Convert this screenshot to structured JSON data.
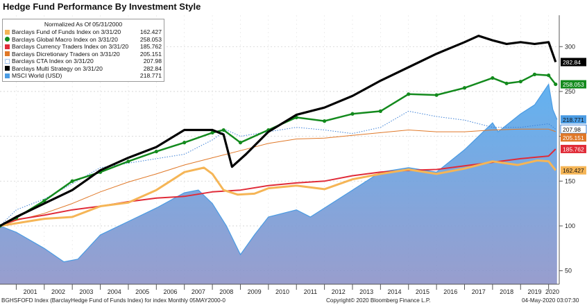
{
  "chart_data": {
    "type": "line",
    "title": "Hedge Fund Performance By Investment Style",
    "normalized_note": "Normalized As Of 05/31/2000",
    "xlabel": "",
    "ylabel": "",
    "x_tick_labels": [
      "2001",
      "2002",
      "2003",
      "2004",
      "2005",
      "2006",
      "2007",
      "2008",
      "2009",
      "2010",
      "2011",
      "2012",
      "2013",
      "2014",
      "2015",
      "2016",
      "2017",
      "2018",
      "2019",
      "2020"
    ],
    "xlim": [
      2000.42,
      2020.38
    ],
    "y_tick_labels": [
      "50",
      "100",
      "150",
      "200",
      "250",
      "300"
    ],
    "y_ticks": [
      50,
      100,
      150,
      200,
      250,
      300
    ],
    "ylim": [
      35,
      335
    ],
    "legend_position": "top-left",
    "series": [
      {
        "name": "Barclays Fund of Funds Index on 3/31/20",
        "value_label": "162.427",
        "color": "#f5b556",
        "style": "line-thick",
        "points": [
          [
            2000.42,
            100
          ],
          [
            2001.0,
            103
          ],
          [
            2002.0,
            108
          ],
          [
            2003.0,
            110
          ],
          [
            2004.0,
            122
          ],
          [
            2005.0,
            126
          ],
          [
            2006.0,
            140
          ],
          [
            2007.0,
            160
          ],
          [
            2007.7,
            165
          ],
          [
            2008.0,
            158
          ],
          [
            2008.4,
            140
          ],
          [
            2008.9,
            135
          ],
          [
            2009.5,
            136
          ],
          [
            2010.0,
            142
          ],
          [
            2011.0,
            145
          ],
          [
            2012.0,
            141
          ],
          [
            2013.0,
            152
          ],
          [
            2014.0,
            158
          ],
          [
            2015.0,
            163
          ],
          [
            2016.0,
            158
          ],
          [
            2017.0,
            164
          ],
          [
            2018.0,
            172
          ],
          [
            2018.9,
            168
          ],
          [
            2019.6,
            173
          ],
          [
            2020.0,
            172
          ],
          [
            2020.25,
            162
          ]
        ]
      },
      {
        "name": "Barclays Global Macro Index on 3/31/20",
        "value_label": "258.053",
        "color": "#138a1d",
        "style": "dots",
        "points": [
          [
            2000.42,
            100
          ],
          [
            2001.0,
            109
          ],
          [
            2002.0,
            128
          ],
          [
            2003.0,
            150
          ],
          [
            2004.0,
            160
          ],
          [
            2005.0,
            172
          ],
          [
            2006.0,
            183
          ],
          [
            2007.0,
            193
          ],
          [
            2008.0,
            204
          ],
          [
            2008.4,
            207
          ],
          [
            2009.0,
            193
          ],
          [
            2010.0,
            207
          ],
          [
            2011.0,
            221
          ],
          [
            2012.0,
            217
          ],
          [
            2013.0,
            225
          ],
          [
            2014.0,
            228
          ],
          [
            2015.0,
            247
          ],
          [
            2016.0,
            246
          ],
          [
            2017.0,
            254
          ],
          [
            2018.0,
            265
          ],
          [
            2018.5,
            259
          ],
          [
            2019.0,
            261
          ],
          [
            2019.5,
            269
          ],
          [
            2020.0,
            268
          ],
          [
            2020.25,
            258
          ]
        ]
      },
      {
        "name": "Barclays Currency Traders Index on 3/31/20",
        "value_label": "185.762",
        "color": "#e02b38",
        "style": "line",
        "points": [
          [
            2000.42,
            100
          ],
          [
            2001.0,
            107
          ],
          [
            2002.0,
            112
          ],
          [
            2003.0,
            118
          ],
          [
            2004.0,
            122
          ],
          [
            2005.0,
            127
          ],
          [
            2006.0,
            131
          ],
          [
            2007.0,
            133
          ],
          [
            2008.0,
            138
          ],
          [
            2009.0,
            140
          ],
          [
            2010.0,
            145
          ],
          [
            2011.0,
            148
          ],
          [
            2012.0,
            150
          ],
          [
            2013.0,
            156
          ],
          [
            2014.0,
            160
          ],
          [
            2015.0,
            162
          ],
          [
            2016.0,
            163
          ],
          [
            2017.0,
            167
          ],
          [
            2018.0,
            171
          ],
          [
            2019.0,
            175
          ],
          [
            2020.0,
            178
          ],
          [
            2020.25,
            185.8
          ]
        ]
      },
      {
        "name": "Barclays Dicretionary Traders on 3/31/20",
        "value_label": "205.151",
        "color": "#e07828",
        "style": "line-thin",
        "points": [
          [
            2000.42,
            100
          ],
          [
            2001.0,
            106
          ],
          [
            2002.0,
            114
          ],
          [
            2003.0,
            125
          ],
          [
            2004.0,
            138
          ],
          [
            2005.0,
            149
          ],
          [
            2006.0,
            158
          ],
          [
            2007.0,
            168
          ],
          [
            2008.0,
            176
          ],
          [
            2009.0,
            184
          ],
          [
            2010.0,
            192
          ],
          [
            2011.0,
            197
          ],
          [
            2012.0,
            198
          ],
          [
            2013.0,
            201
          ],
          [
            2014.0,
            204
          ],
          [
            2015.0,
            207
          ],
          [
            2016.0,
            205
          ],
          [
            2017.0,
            205
          ],
          [
            2018.0,
            207
          ],
          [
            2019.0,
            208
          ],
          [
            2020.0,
            208
          ],
          [
            2020.25,
            205.2
          ]
        ]
      },
      {
        "name": "Barclays CTA Index on 3/31/20",
        "value_label": "207.98",
        "color": "#3a7fd6",
        "style": "dotted",
        "points": [
          [
            2000.42,
            100
          ],
          [
            2001.0,
            118
          ],
          [
            2002.0,
            130
          ],
          [
            2003.0,
            147
          ],
          [
            2004.0,
            165
          ],
          [
            2005.0,
            170
          ],
          [
            2006.0,
            175
          ],
          [
            2007.0,
            180
          ],
          [
            2008.0,
            196
          ],
          [
            2008.5,
            207
          ],
          [
            2009.0,
            200
          ],
          [
            2010.0,
            205
          ],
          [
            2011.0,
            210
          ],
          [
            2012.0,
            207
          ],
          [
            2013.0,
            203
          ],
          [
            2014.0,
            210
          ],
          [
            2015.0,
            228
          ],
          [
            2016.0,
            222
          ],
          [
            2017.0,
            218
          ],
          [
            2018.0,
            210
          ],
          [
            2019.0,
            210
          ],
          [
            2020.0,
            214
          ],
          [
            2020.25,
            208
          ]
        ]
      },
      {
        "name": "Barclays Multi Strategy on 3/31/20",
        "value_label": "282.84",
        "color": "#000000",
        "style": "line-bold",
        "points": [
          [
            2000.42,
            100
          ],
          [
            2001.0,
            110
          ],
          [
            2002.0,
            125
          ],
          [
            2003.0,
            140
          ],
          [
            2004.0,
            162
          ],
          [
            2005.0,
            176
          ],
          [
            2006.0,
            188
          ],
          [
            2007.0,
            207
          ],
          [
            2008.0,
            207
          ],
          [
            2008.4,
            202
          ],
          [
            2008.7,
            166
          ],
          [
            2009.2,
            180
          ],
          [
            2010.0,
            205
          ],
          [
            2011.0,
            224
          ],
          [
            2012.0,
            232
          ],
          [
            2013.0,
            245
          ],
          [
            2014.0,
            262
          ],
          [
            2015.0,
            277
          ],
          [
            2016.0,
            292
          ],
          [
            2017.0,
            305
          ],
          [
            2017.5,
            312
          ],
          [
            2018.0,
            307
          ],
          [
            2018.5,
            303
          ],
          [
            2019.0,
            305
          ],
          [
            2019.5,
            303
          ],
          [
            2020.0,
            305
          ],
          [
            2020.25,
            282.8
          ]
        ]
      },
      {
        "name": "MSCI World (USD)",
        "value_label": "218.771",
        "color": "#4a9be3",
        "style": "area",
        "points": [
          [
            2000.42,
            100
          ],
          [
            2001.0,
            93
          ],
          [
            2002.0,
            75
          ],
          [
            2002.7,
            60
          ],
          [
            2003.2,
            63
          ],
          [
            2004.0,
            90
          ],
          [
            2005.0,
            105
          ],
          [
            2006.0,
            120
          ],
          [
            2007.0,
            137
          ],
          [
            2007.5,
            140
          ],
          [
            2008.0,
            125
          ],
          [
            2008.5,
            100
          ],
          [
            2009.0,
            68
          ],
          [
            2009.5,
            90
          ],
          [
            2010.0,
            110
          ],
          [
            2011.0,
            118
          ],
          [
            2011.5,
            110
          ],
          [
            2012.0,
            120
          ],
          [
            2013.0,
            140
          ],
          [
            2014.0,
            160
          ],
          [
            2015.0,
            165
          ],
          [
            2016.0,
            160
          ],
          [
            2017.0,
            185
          ],
          [
            2018.0,
            215
          ],
          [
            2018.2,
            205
          ],
          [
            2019.0,
            225
          ],
          [
            2019.5,
            235
          ],
          [
            2020.0,
            258
          ],
          [
            2020.15,
            230
          ],
          [
            2020.3,
            218.8
          ]
        ]
      }
    ]
  },
  "footer": {
    "left": "BGHSFOFD Index (BarclayHedge Fund of Funds Index) for index  Monthly 05MAY2000-0",
    "center": "Copyright© 2020 Bloomberg Finance L.P.",
    "right": "04-May-2020 03:07:30"
  }
}
